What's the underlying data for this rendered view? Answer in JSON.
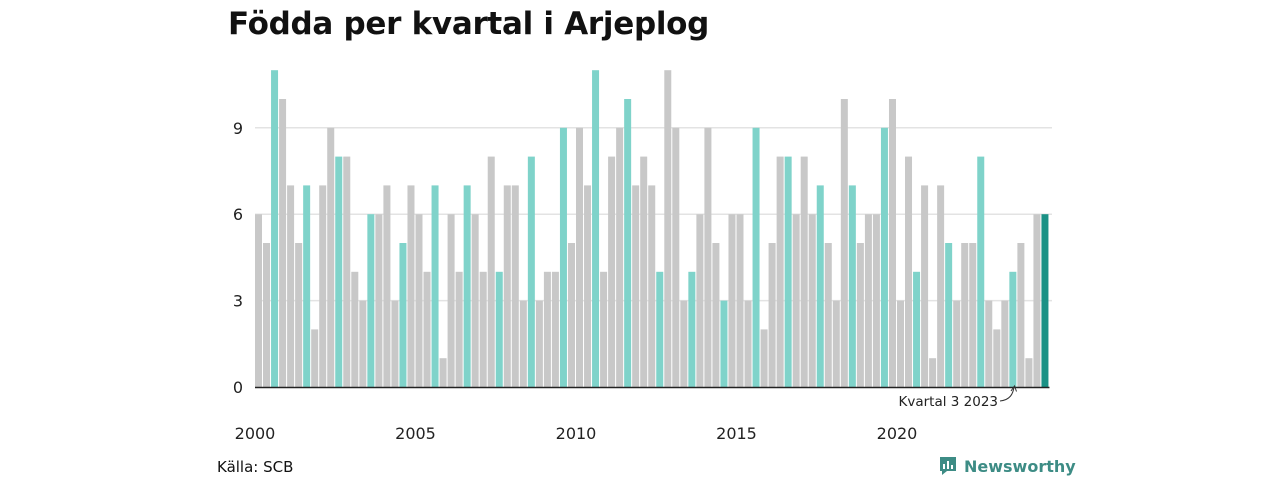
{
  "chart_data": {
    "type": "bar",
    "title": "Födda per kvartal i Arjeplog",
    "xlabel": "",
    "ylabel": "",
    "ylim": [
      0,
      11
    ],
    "yticks": [
      "0",
      "3",
      "6",
      "9"
    ],
    "xticks": [
      {
        "year": 2000,
        "label": "2000"
      },
      {
        "year": 2005,
        "label": "2005"
      },
      {
        "year": 2010,
        "label": "2010"
      },
      {
        "year": 2015,
        "label": "2015"
      },
      {
        "year": 2020,
        "label": "2020"
      }
    ],
    "start_year": 2000,
    "grid": true,
    "highlight_quarter": 3,
    "colors": {
      "default": "#c8c8c8",
      "highlight": "#7fd3ca",
      "latest": "#1a9185",
      "grid": "#e3e3e3",
      "axis": "#222222"
    },
    "values": [
      6,
      5,
      11,
      10,
      7,
      5,
      7,
      2,
      7,
      9,
      8,
      8,
      4,
      3,
      6,
      6,
      7,
      3,
      5,
      7,
      6,
      4,
      7,
      1,
      6,
      4,
      7,
      6,
      4,
      8,
      4,
      7,
      7,
      3,
      8,
      3,
      4,
      4,
      9,
      5,
      9,
      7,
      11,
      4,
      8,
      9,
      10,
      7,
      8,
      7,
      4,
      11,
      9,
      3,
      4,
      6,
      9,
      5,
      3,
      6,
      6,
      3,
      9,
      2,
      5,
      8,
      8,
      6,
      8,
      6,
      7,
      5,
      3,
      10,
      7,
      5,
      6,
      6,
      9,
      10,
      3,
      8,
      4,
      7,
      1,
      7,
      5,
      3,
      5,
      5,
      8,
      3,
      2,
      3,
      4,
      5,
      1,
      6,
      6
    ],
    "annotation": "Kvartal 3 2023"
  },
  "source": "Källa: SCB",
  "brand": "Newsworthy"
}
